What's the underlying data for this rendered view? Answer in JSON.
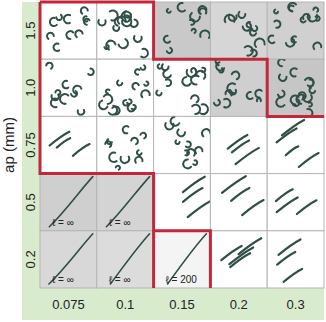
{
  "chart_data": {
    "type": "grid",
    "ylabel": "ap (mm)",
    "categories": [
      "0.075",
      "0.1",
      "0.15",
      "0.2",
      "0.3"
    ],
    "rows": [
      "1.5",
      "1.0",
      "0.75",
      "0.5",
      "0.2"
    ],
    "colors": [
      [
        "#ffffff",
        "#ffffff",
        "#c9c9c9",
        "#d6d6d6",
        "#d0d0d0"
      ],
      [
        "#ffffff",
        "#ffffff",
        "#ffffff",
        "#cfcfcf",
        "#c6c6c6"
      ],
      [
        "#ffffff",
        "#ffffff",
        "#ffffff",
        "#ffffff",
        "#ffffff"
      ],
      [
        "#cfcfcf",
        "#d4d4d4",
        "#ffffff",
        "#ffffff",
        "#ffffff"
      ],
      [
        "#d8d8d8",
        "#dcdcdc",
        "#f4f4f4",
        "#ffffff",
        "#ffffff"
      ]
    ],
    "cell_labels": [
      [
        null,
        null,
        null,
        null,
        null
      ],
      [
        null,
        null,
        null,
        null,
        null
      ],
      [
        null,
        null,
        null,
        null,
        null
      ],
      [
        "ℓ = ∞",
        "ℓ = ∞",
        null,
        null,
        null
      ],
      [
        "ℓ = ∞",
        "ℓ = ∞",
        "ℓ = 200",
        null,
        null
      ]
    ]
  }
}
